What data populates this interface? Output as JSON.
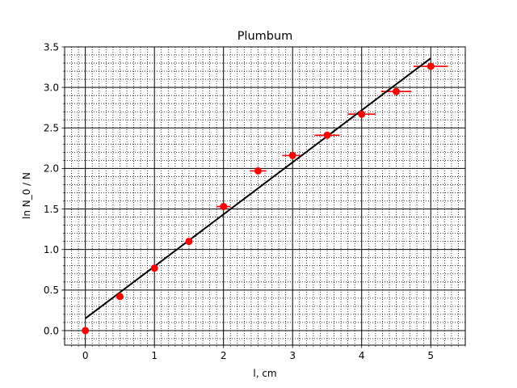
{
  "chart_data": {
    "type": "scatter",
    "title": "Plumbum",
    "xlabel": "l, cm",
    "ylabel": "ln N_0 / N",
    "xlim": [
      -0.3,
      5.5
    ],
    "ylim": [
      -0.18,
      3.5
    ],
    "x_ticks": [
      0,
      1,
      2,
      3,
      4,
      5
    ],
    "x_tick_labels": [
      "0",
      "1",
      "2",
      "3",
      "4",
      "5"
    ],
    "y_ticks": [
      0.0,
      0.5,
      1.0,
      1.5,
      2.0,
      2.5,
      3.0,
      3.5
    ],
    "y_tick_labels": [
      "0.0",
      "0.5",
      "1.0",
      "1.5",
      "2.0",
      "2.5",
      "3.0",
      "3.5"
    ],
    "x_minor_step": 0.1,
    "y_minor_step": 0.1,
    "grid": {
      "major": true,
      "minor": true
    },
    "series": [
      {
        "kind": "points_with_xerr",
        "color": "#ff0000",
        "x": [
          0.0,
          0.5,
          1.0,
          1.5,
          2.0,
          2.5,
          3.0,
          3.5,
          4.0,
          4.5,
          5.0
        ],
        "y": [
          0.0,
          0.42,
          0.77,
          1.1,
          1.53,
          1.97,
          2.16,
          2.41,
          2.67,
          2.95,
          3.26
        ],
        "xerr": [
          0.0,
          0.0,
          0.0,
          0.0,
          0.1,
          0.12,
          0.15,
          0.18,
          0.2,
          0.22,
          0.25
        ]
      },
      {
        "kind": "fit_line",
        "color": "#000000",
        "x": [
          0.0,
          5.0
        ],
        "y": [
          0.15,
          3.36
        ]
      }
    ]
  }
}
